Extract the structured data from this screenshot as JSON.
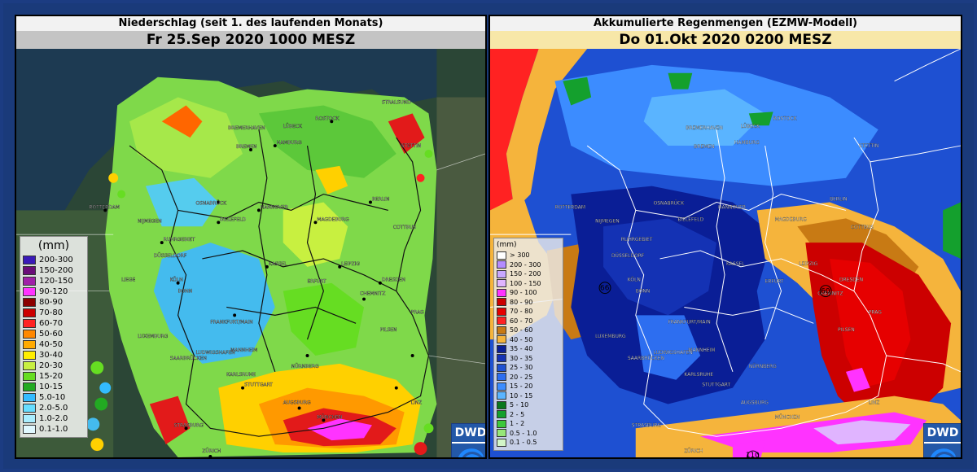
{
  "left": {
    "title": "Niederschlag (seit 1. des laufenden Monats)",
    "subtitle": "Fr 25.Sep 2020 1000 MESZ",
    "legend_unit": "(mm)",
    "legend": [
      {
        "label": "200-300",
        "color": "#3a1ab8"
      },
      {
        "label": "150-200",
        "color": "#6a0d78"
      },
      {
        "label": "120-150",
        "color": "#a020a8"
      },
      {
        "label": "90-120",
        "color": "#ff33ff"
      },
      {
        "label": "80-90",
        "color": "#8b0000"
      },
      {
        "label": "70-80",
        "color": "#cc0000"
      },
      {
        "label": "60-70",
        "color": "#ff2222"
      },
      {
        "label": "50-60",
        "color": "#ff8800"
      },
      {
        "label": "40-50",
        "color": "#ffaa00"
      },
      {
        "label": "30-40",
        "color": "#ffee00"
      },
      {
        "label": "20-30",
        "color": "#c8f040"
      },
      {
        "label": "15-20",
        "color": "#66dd22"
      },
      {
        "label": "10-15",
        "color": "#22aa22"
      },
      {
        "label": "5.0-10",
        "color": "#33bbff"
      },
      {
        "label": "2.0-5.0",
        "color": "#66ddff"
      },
      {
        "label": "1.0-2.0",
        "color": "#aaeeff"
      },
      {
        "label": "0.1-1.0",
        "color": "#e0f8ff"
      }
    ],
    "cities": [
      "HAMBURG",
      "BERLIN",
      "HANNOVER",
      "MAGDEBURG",
      "BIELEFELD",
      "RUHRGEBIET",
      "DÜSSELDORF",
      "KÖLN",
      "KASSEL",
      "ERFURT",
      "LEIPZIG",
      "DRESDEN",
      "CHEMNITZ",
      "FRANKFURT/MAIN",
      "NÜRNBERG",
      "STUTTGART",
      "MÜNCHEN",
      "AUGSBURG",
      "STRASBURG",
      "ZÜRICH",
      "ROTTERDAM",
      "OSNABRÜCK",
      "BREMEN",
      "ROSTOCK",
      "PRAG",
      "PILSEN",
      "KARLSRUHE",
      "LUXEMBURG",
      "MANNHEIM",
      "SAARBRÜCKEN",
      "LINZ",
      "COTTBUS",
      "STETTIN",
      "BREMERHAVEN",
      "LÜBECK",
      "BONN",
      "LIEGE",
      "NIJMEGEN",
      "LUDWIGSHAFEN",
      "STRALSUND"
    ]
  },
  "right": {
    "title": "Akkumulierte Regenmengen (EZMW-Modell)",
    "subtitle": "Do 01.Okt 2020 0200 MESZ",
    "legend_unit": "(mm)",
    "legend": [
      {
        "label": "> 300",
        "color": "#ffffff"
      },
      {
        "label": "200 - 300",
        "color": "#b48cff"
      },
      {
        "label": "150 - 200",
        "color": "#c8a8ff"
      },
      {
        "label": "100 - 150",
        "color": "#e0b4ff"
      },
      {
        "label": "90 - 100",
        "color": "#ff33ff"
      },
      {
        "label": "80 - 90",
        "color": "#cc0000"
      },
      {
        "label": "70 - 80",
        "color": "#e60000"
      },
      {
        "label": "60 - 70",
        "color": "#ff2222"
      },
      {
        "label": "50 - 60",
        "color": "#c87a14"
      },
      {
        "label": "40 - 50",
        "color": "#f5b43c"
      },
      {
        "label": "35 - 40",
        "color": "#0a1e96"
      },
      {
        "label": "30 - 35",
        "color": "#1432b4"
      },
      {
        "label": "25 - 30",
        "color": "#1e50d2"
      },
      {
        "label": "20 - 25",
        "color": "#2d6ef0"
      },
      {
        "label": "15 - 20",
        "color": "#3c8cff"
      },
      {
        "label": "10 - 15",
        "color": "#5ab4ff"
      },
      {
        "label": "5 - 10",
        "color": "#0a781e"
      },
      {
        "label": "2 - 5",
        "color": "#14a02d"
      },
      {
        "label": "1 - 2",
        "color": "#3cc83c"
      },
      {
        "label": "0.5 - 1.0",
        "color": "#96e678"
      },
      {
        "label": "0.1 - 0.5",
        "color": "#d2f5c8"
      }
    ],
    "max_labels": [
      "66",
      "60",
      "110"
    ],
    "cities": [
      "HAMBURG",
      "BERLIN",
      "HANNOVER",
      "MAGDEBURG",
      "BIELEFELD",
      "RUHRGEBIET",
      "DÜSSELDORF",
      "KÖLN",
      "KASSEL",
      "ERFURT",
      "LEIPZIG",
      "DRESDEN",
      "CHEMNITZ",
      "FRANKFURT/MAIN",
      "NÜRNBERG",
      "STUTTGART",
      "MÜNCHEN",
      "AUGSBURG",
      "STRASBURG",
      "ZÜRICH",
      "ROTTERDAM",
      "OSNABRÜCK",
      "BREMEN",
      "ROSTOCK",
      "PRAG",
      "PILSEN",
      "KARLSRUHE",
      "LUXEMBURG",
      "MANNHEIM",
      "SAARBRÜCKEN",
      "LINZ",
      "COTTBUS",
      "STETTIN",
      "BREMERHAVEN",
      "LÜBECK",
      "BONN",
      "NIJMEGEN",
      "LUDWIGSHAFEN"
    ]
  },
  "logo": {
    "text": "DWD",
    "symbol": "🌀"
  }
}
